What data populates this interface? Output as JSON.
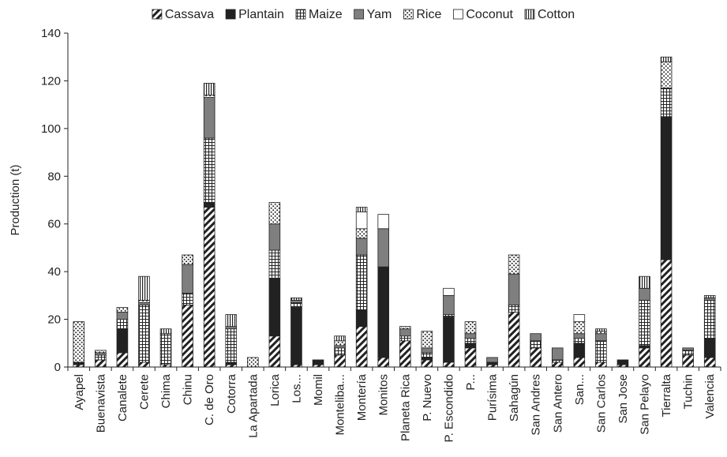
{
  "chart_data": {
    "type": "bar",
    "stacked": true,
    "title": "",
    "xlabel": "",
    "ylabel": "Production (t)",
    "ylim": [
      0,
      140
    ],
    "yticks": [
      0,
      20,
      40,
      60,
      80,
      100,
      120,
      140
    ],
    "grid": false,
    "legend_position": "top",
    "categories": [
      "Ayapel",
      "Buenavista",
      "Canalete",
      "Cerete",
      "Chima",
      "Chinu",
      "C. de Oro",
      "Cotorra",
      "La Apartada",
      "Lorica",
      "Los...",
      "Momil",
      "Monteliba...",
      "Montería",
      "Monitos",
      "Planeta Rica",
      "P. Nuevo",
      "P. Escondido",
      "P...",
      "Purísima",
      "Sahagún",
      "San Andres",
      "San Antero",
      "San...",
      "San Carlos",
      "San Jose",
      "San Pelayo",
      "Tierralta",
      "Tuchin",
      "Valencia"
    ],
    "series": [
      {
        "name": "Cassava",
        "pattern": "diagonal",
        "values": [
          1,
          3,
          6,
          2,
          1,
          26,
          67,
          1,
          0,
          13,
          1,
          1,
          5,
          17,
          4,
          11,
          3,
          2,
          8,
          1,
          23,
          8,
          2,
          4,
          2,
          1,
          8,
          45,
          5,
          4
        ]
      },
      {
        "name": "Plantain",
        "pattern": "solid",
        "values": [
          1,
          0,
          10,
          0,
          0,
          0,
          2,
          1,
          0,
          24,
          24,
          2,
          0,
          7,
          38,
          0,
          1,
          19,
          2,
          1,
          0,
          0,
          0,
          6,
          0,
          2,
          1,
          60,
          0,
          8
        ]
      },
      {
        "name": "Maize",
        "pattern": "grid",
        "values": [
          0,
          2,
          4,
          24,
          13,
          5,
          27,
          14,
          0,
          12,
          2,
          0,
          3,
          23,
          0,
          2,
          2,
          1,
          2,
          0,
          3,
          3,
          1,
          2,
          9,
          0,
          19,
          12,
          2,
          16
        ]
      },
      {
        "name": "Yam",
        "pattern": "gray",
        "values": [
          0,
          1,
          3,
          1,
          0,
          12,
          17,
          1,
          0,
          11,
          1,
          0,
          1,
          7,
          16,
          3,
          2,
          8,
          2,
          2,
          13,
          3,
          5,
          2,
          3,
          0,
          5,
          0,
          1,
          1
        ]
      },
      {
        "name": "Rice",
        "pattern": "dots",
        "values": [
          17,
          1,
          2,
          1,
          0,
          4,
          1,
          0,
          4,
          9,
          0,
          0,
          2,
          4,
          0,
          1,
          7,
          0,
          5,
          0,
          8,
          0,
          0,
          5,
          1,
          0,
          0,
          11,
          0,
          0
        ]
      },
      {
        "name": "Coconut",
        "pattern": "white",
        "values": [
          0,
          0,
          0,
          0,
          0,
          0,
          0,
          0,
          0,
          0,
          0,
          0,
          0,
          7,
          6,
          0,
          0,
          3,
          0,
          0,
          0,
          0,
          0,
          3,
          0,
          0,
          0,
          0,
          0,
          0
        ]
      },
      {
        "name": "Cotton",
        "pattern": "vlines",
        "values": [
          0,
          0,
          0,
          10,
          2,
          0,
          5,
          5,
          0,
          0,
          1,
          0,
          2,
          2,
          0,
          0,
          0,
          0,
          0,
          0,
          0,
          0,
          0,
          0,
          1,
          0,
          5,
          2,
          0,
          1
        ]
      }
    ]
  }
}
